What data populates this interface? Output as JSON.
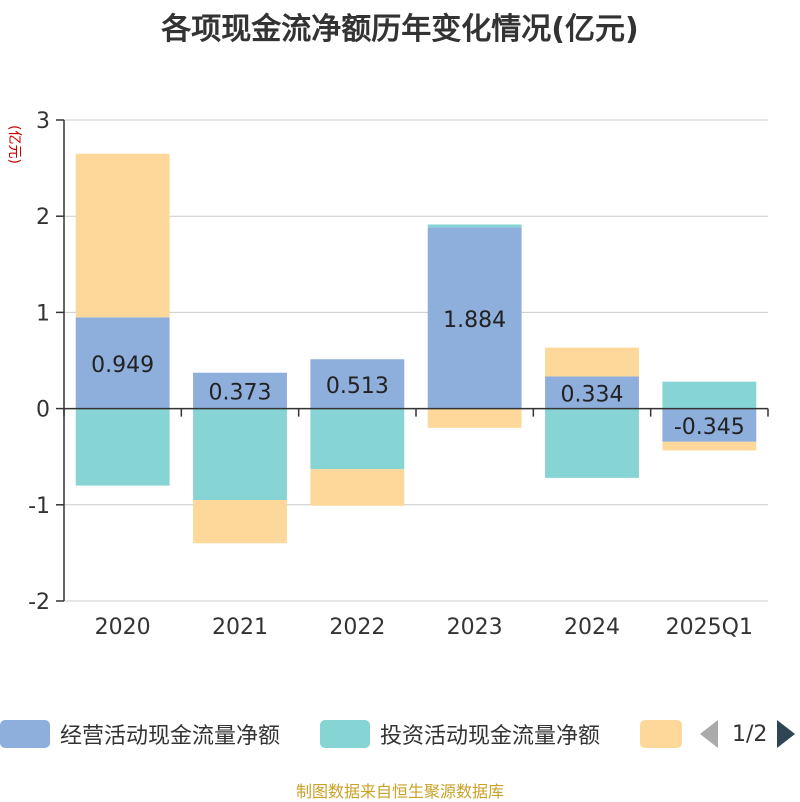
{
  "chart_data": {
    "type": "bar",
    "stacked": true,
    "title": "各项现金流净额历年变化情况(亿元)",
    "ylabel": "(亿元)",
    "xlabel": "",
    "categories": [
      "2020",
      "2021",
      "2022",
      "2023",
      "2024",
      "2025Q1"
    ],
    "ylim": [
      -2,
      3
    ],
    "yticks": [
      -2,
      -1,
      0,
      1,
      2,
      3
    ],
    "series": [
      {
        "name": "经营活动现金流量净额",
        "color": "#8eaedc",
        "values": [
          0.949,
          0.373,
          0.513,
          1.884,
          0.334,
          -0.345
        ],
        "show_labels": true
      },
      {
        "name": "投资活动现金流量净额",
        "color": "#86d4d4",
        "values": [
          -0.8,
          -0.95,
          -0.63,
          0.03,
          -0.72,
          0.28
        ],
        "show_labels": false
      },
      {
        "name": "",
        "color": "#fdd89a",
        "values": [
          1.7,
          -0.45,
          -0.38,
          -0.2,
          0.3,
          -0.09
        ],
        "show_labels": false
      }
    ],
    "legend": {
      "position": "bottom",
      "page_text": "1/2"
    },
    "source": "制图数据来自恒生聚源数据库"
  }
}
